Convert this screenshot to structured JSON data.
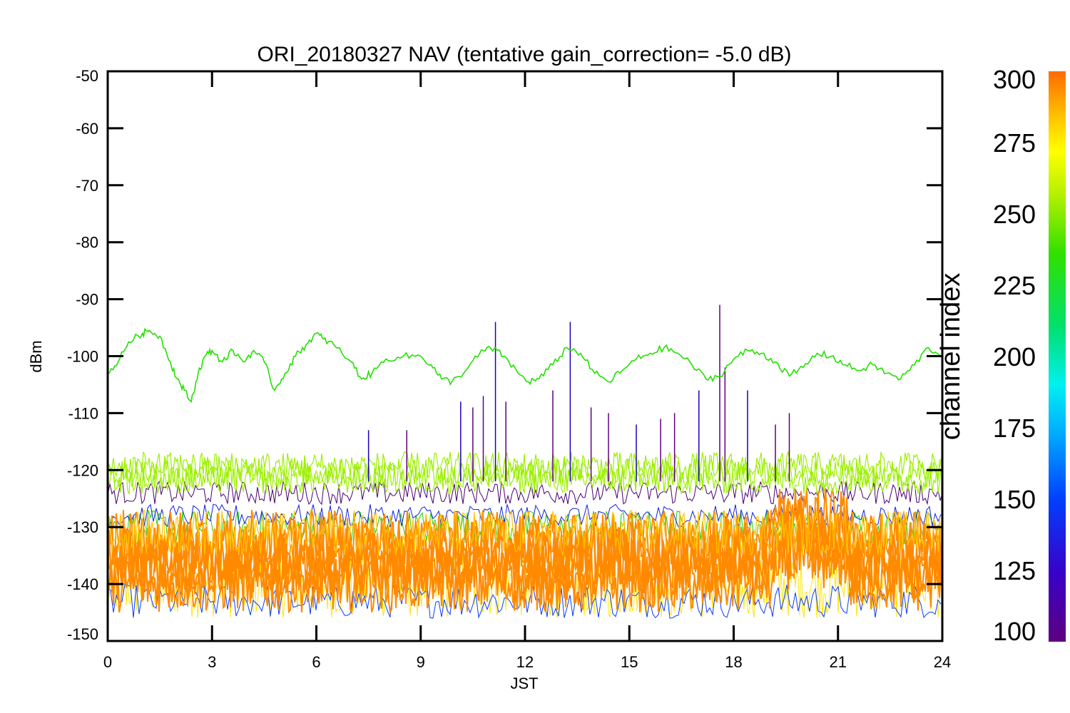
{
  "chart_data": {
    "type": "line",
    "title": "ORI_20180327 NAV (tentative gain_correction= -5.0 dB)",
    "xlabel": "JST",
    "ylabel": "dBm",
    "xlim": [
      0,
      24
    ],
    "ylim": [
      -150,
      -50
    ],
    "xticks": [
      "0",
      "3",
      "6",
      "9",
      "12",
      "15",
      "18",
      "21",
      "24"
    ],
    "yticks": [
      "-50",
      "-60",
      "-70",
      "-80",
      "-90",
      "-100",
      "-110",
      "-120",
      "-130",
      "-140",
      "-150"
    ],
    "grid": false,
    "colorbar": {
      "label": "channel index",
      "range": [
        100,
        300
      ],
      "ticks": [
        "300",
        "275",
        "250",
        "225",
        "200",
        "175",
        "150",
        "125",
        "100"
      ]
    },
    "series": [
      {
        "channel": 245,
        "color": "#22e000",
        "x": [
          0,
          0.3,
          0.6,
          1.0,
          1.2,
          1.5,
          1.8,
          2.0,
          2.2,
          2.4,
          2.6,
          2.8,
          3.0,
          3.3,
          3.6,
          3.9,
          4.2,
          4.5,
          4.8,
          5.1,
          5.4,
          5.7,
          6.0,
          6.2,
          6.5,
          7.0,
          7.3,
          7.6,
          8.0,
          8.5,
          9.0,
          9.3,
          9.6,
          9.9,
          10.3,
          10.7,
          11.0,
          11.4,
          11.8,
          12.1,
          12.4,
          12.8,
          13.2,
          13.6,
          14.0,
          14.4,
          14.8,
          15.2,
          15.6,
          16.0,
          16.4,
          16.8,
          17.2,
          17.6,
          18.0,
          18.4,
          18.8,
          19.2,
          19.6,
          20.0,
          20.4,
          20.8,
          21.2,
          21.6,
          22.0,
          22.4,
          22.8,
          23.2,
          23.6,
          24.0
        ],
        "y": [
          -103,
          -101,
          -97.5,
          -96,
          -95.5,
          -96.5,
          -101,
          -104,
          -106,
          -108,
          -103,
          -100,
          -99,
          -101,
          -99,
          -101,
          -99,
          -101,
          -106,
          -103,
          -100,
          -98,
          -96,
          -97,
          -98,
          -101,
          -104,
          -103,
          -100.5,
          -100,
          -100,
          -101.5,
          -104,
          -104.5,
          -102.5,
          -99.5,
          -98.5,
          -100,
          -103,
          -104.5,
          -104,
          -101.5,
          -98.5,
          -99.5,
          -103,
          -104.5,
          -102.5,
          -100.5,
          -99.5,
          -98.5,
          -99.5,
          -101.5,
          -104,
          -103.5,
          -100.5,
          -99,
          -99.5,
          -101,
          -103.5,
          -102,
          -99.5,
          -100,
          -101.5,
          -102.5,
          -101.5,
          -103,
          -104,
          -101.5,
          -98.5,
          -100
        ]
      }
    ]
  }
}
